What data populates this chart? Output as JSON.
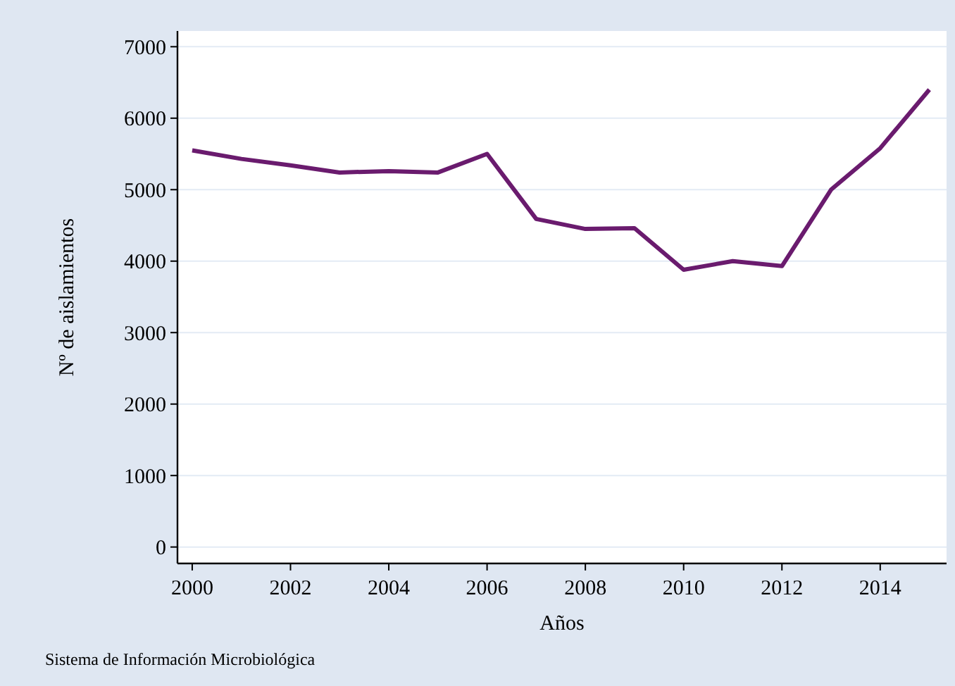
{
  "chart_data": {
    "type": "line",
    "xlabel": "Años",
    "ylabel": "Nº de aislamientos",
    "x": [
      2000,
      2001,
      2002,
      2003,
      2004,
      2005,
      2006,
      2007,
      2008,
      2009,
      2010,
      2011,
      2012,
      2013,
      2014,
      2015
    ],
    "series": [
      {
        "color": "#6a1b6e",
        "values": [
          5550,
          5430,
          5340,
          5240,
          5260,
          5240,
          5500,
          4590,
          4450,
          4460,
          3880,
          4000,
          3930,
          5000,
          5580,
          6400
        ]
      }
    ],
    "xlim": [
      1999.7,
      2015.35
    ],
    "xticks": [
      2000,
      2002,
      2004,
      2006,
      2008,
      2010,
      2012,
      2014
    ],
    "ylim": [
      -230,
      7220
    ],
    "yticks": [
      0,
      1000,
      2000,
      3000,
      4000,
      5000,
      6000,
      7000
    ],
    "grid": "y",
    "marker": "none",
    "line_style": "solid",
    "annotations": [
      "Sistema de Información Microbiológica"
    ]
  }
}
